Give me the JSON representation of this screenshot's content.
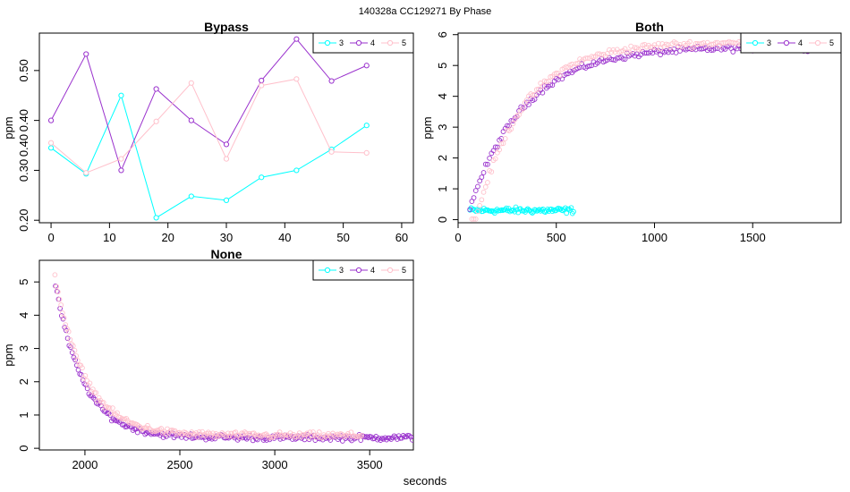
{
  "figure": {
    "suptitle": "140328a    CC129271   By Phase",
    "xlabel": "seconds"
  },
  "colors": {
    "3": "#00ffff",
    "4": "#9a32cd",
    "5": "#ffc0cb"
  },
  "chart_data": [
    {
      "id": "bypass",
      "type": "line",
      "title": "Bypass",
      "ylabel": "ppm",
      "xlim": [
        -2,
        62
      ],
      "ylim": [
        0.195,
        0.575
      ],
      "xticks": [
        0,
        10,
        20,
        30,
        40,
        50,
        60
      ],
      "yticks": [
        0.2,
        0.3,
        0.4,
        0.5
      ],
      "ytick_labels": [
        "0.20",
        "0.30",
        "0.40",
        "0.50"
      ],
      "ytick_overlap": {
        "value": 0.35,
        "label": "0.40"
      },
      "legend": [
        "3",
        "4",
        "5"
      ],
      "legend_position": "top-right",
      "series": [
        {
          "name": "3",
          "x": [
            0,
            6,
            12,
            18,
            24,
            30,
            36,
            42,
            48,
            54
          ],
          "y": [
            0.345,
            0.293,
            0.45,
            0.205,
            0.248,
            0.24,
            0.286,
            0.3,
            0.342,
            0.39
          ]
        },
        {
          "name": "4",
          "x": [
            0,
            6,
            12,
            18,
            24,
            30,
            36,
            42,
            48,
            54
          ],
          "y": [
            0.4,
            0.533,
            0.3,
            0.463,
            0.4,
            0.352,
            0.48,
            0.563,
            0.479,
            0.51
          ]
        },
        {
          "name": "5",
          "x": [
            0,
            6,
            12,
            18,
            24,
            30,
            36,
            42,
            48,
            54
          ],
          "y": [
            0.355,
            0.295,
            0.323,
            0.398,
            0.475,
            0.323,
            0.47,
            0.483,
            0.337,
            0.335
          ]
        }
      ]
    },
    {
      "id": "both",
      "type": "scatter",
      "title": "Both",
      "ylabel": "ppm",
      "xlim": [
        0,
        1950
      ],
      "ylim": [
        -0.1,
        6.05
      ],
      "xticks": [
        0,
        500,
        1000,
        1500
      ],
      "yticks": [
        0,
        1,
        2,
        3,
        4,
        5,
        6
      ],
      "legend": [
        "3",
        "4",
        "5"
      ],
      "legend_position": "top-right",
      "series": [
        {
          "name": "3",
          "curve": "flat",
          "x_range": [
            60,
            590
          ],
          "step": 6,
          "mean": 0.3,
          "noise": 0.08
        },
        {
          "name": "4",
          "curve": "rise",
          "x_range": [
            60,
            1870
          ],
          "step": 10,
          "x0": 40,
          "a": 5.6,
          "k": 0.0036,
          "noise": 0.08
        },
        {
          "name": "5",
          "curve": "rise",
          "x_range": [
            70,
            1880
          ],
          "step": 10,
          "x0": 90,
          "a": 5.75,
          "k": 0.0042,
          "noise": 0.09
        }
      ]
    },
    {
      "id": "none",
      "type": "scatter",
      "title": "None",
      "ylabel": "ppm",
      "xlim": [
        1760,
        3730
      ],
      "ylim": [
        -0.05,
        5.65
      ],
      "xticks": [
        2000,
        2500,
        3000,
        3500
      ],
      "yticks": [
        0,
        1,
        2,
        3,
        4,
        5
      ],
      "legend": [
        "3",
        "4",
        "5"
      ],
      "legend_position": "top-right",
      "series": [
        {
          "name": "4",
          "curve": "decay",
          "x_range": [
            1845,
            3730
          ],
          "step": 8,
          "x0": 1845,
          "a": 4.6,
          "k": 0.0068,
          "base": 0.32,
          "noise": 0.07
        },
        {
          "name": "5",
          "curve": "decay",
          "x_range": [
            1842,
            3460
          ],
          "step": 8,
          "x0": 1842,
          "a": 4.8,
          "k": 0.0063,
          "base": 0.38,
          "noise": 0.08
        }
      ]
    }
  ]
}
